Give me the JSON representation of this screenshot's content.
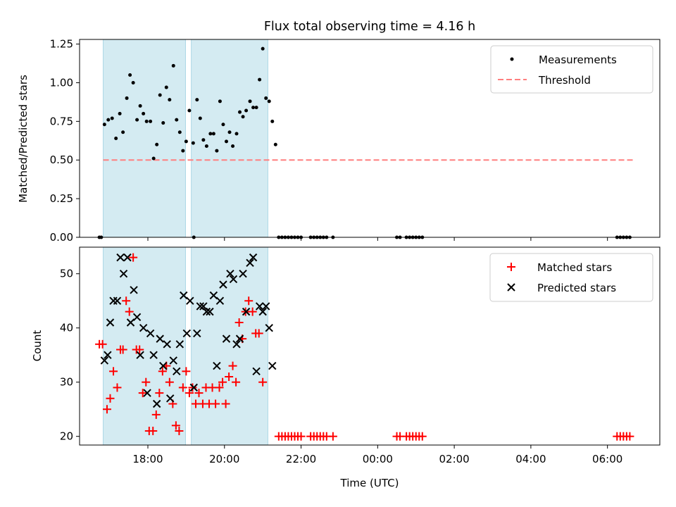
{
  "title": "Flux total observing time = 4.16 h",
  "xlabel": "Time (UTC)",
  "x_tick_labels": [
    "18:00",
    "20:00",
    "22:00",
    "00:00",
    "02:00",
    "04:00",
    "06:00"
  ],
  "colors": {
    "span": "#add8e6",
    "measurement": "#000000",
    "threshold": "#ff7f7f",
    "matched": "#ff0000",
    "predicted": "#000000"
  },
  "chart_data": [
    {
      "type": "scatter",
      "ylabel": "Matched/Predicted stars",
      "ylim": [
        0,
        1.28
      ],
      "yticks": [
        0.0,
        0.25,
        0.5,
        0.75,
        1.0,
        1.25
      ],
      "ytick_labels": [
        "0.00",
        "0.25",
        "0.50",
        "0.75",
        "1.00",
        "1.25"
      ],
      "xlim": [
        "16:13",
        "07:22"
      ],
      "legend_position": "top-right",
      "legend": [
        "Measurements",
        "Threshold"
      ],
      "shaded_spans": [
        [
          "16:50",
          "18:59"
        ],
        [
          "19:08",
          "21:08"
        ]
      ],
      "threshold": {
        "name": "Threshold",
        "y": 0.5,
        "x_range": [
          "16:50",
          "06:40"
        ]
      },
      "series": [
        {
          "name": "Measurements",
          "points": [
            [
              "16:44",
              0.0
            ],
            [
              "16:47",
              0.0
            ],
            [
              "16:52",
              0.73
            ],
            [
              "16:58",
              0.76
            ],
            [
              "17:04",
              0.77
            ],
            [
              "17:10",
              0.64
            ],
            [
              "17:16",
              0.8
            ],
            [
              "17:21",
              0.68
            ],
            [
              "17:27",
              0.9
            ],
            [
              "17:32",
              1.05
            ],
            [
              "17:37",
              1.0
            ],
            [
              "17:43",
              0.76
            ],
            [
              "17:48",
              0.85
            ],
            [
              "17:53",
              0.8
            ],
            [
              "17:58",
              0.75
            ],
            [
              "18:04",
              0.75
            ],
            [
              "18:09",
              0.51
            ],
            [
              "18:14",
              0.6
            ],
            [
              "18:19",
              0.92
            ],
            [
              "18:24",
              0.74
            ],
            [
              "18:29",
              0.97
            ],
            [
              "18:34",
              0.89
            ],
            [
              "18:40",
              1.11
            ],
            [
              "18:45",
              0.76
            ],
            [
              "18:50",
              0.68
            ],
            [
              "18:55",
              0.56
            ],
            [
              "19:00",
              0.62
            ],
            [
              "19:05",
              0.82
            ],
            [
              "19:11",
              0.61
            ],
            [
              "19:12",
              0.0
            ],
            [
              "19:17",
              0.89
            ],
            [
              "19:22",
              0.77
            ],
            [
              "19:27",
              0.63
            ],
            [
              "19:32",
              0.59
            ],
            [
              "19:38",
              0.67
            ],
            [
              "19:43",
              0.67
            ],
            [
              "19:48",
              0.56
            ],
            [
              "19:53",
              0.88
            ],
            [
              "19:58",
              0.73
            ],
            [
              "20:03",
              0.62
            ],
            [
              "20:08",
              0.68
            ],
            [
              "20:13",
              0.59
            ],
            [
              "20:19",
              0.67
            ],
            [
              "20:24",
              0.81
            ],
            [
              "20:29",
              0.78
            ],
            [
              "20:34",
              0.82
            ],
            [
              "20:40",
              0.88
            ],
            [
              "20:45",
              0.84
            ],
            [
              "20:50",
              0.84
            ],
            [
              "20:55",
              1.02
            ],
            [
              "21:00",
              1.22
            ],
            [
              "21:05",
              0.9
            ],
            [
              "21:10",
              0.88
            ],
            [
              "21:15",
              0.75
            ],
            [
              "21:20",
              0.6
            ],
            [
              "21:25",
              0.0
            ],
            [
              "21:30",
              0.0
            ],
            [
              "21:35",
              0.0
            ],
            [
              "21:40",
              0.0
            ],
            [
              "21:45",
              0.0
            ],
            [
              "21:50",
              0.0
            ],
            [
              "21:55",
              0.0
            ],
            [
              "22:00",
              0.0
            ],
            [
              "22:15",
              0.0
            ],
            [
              "22:20",
              0.0
            ],
            [
              "22:25",
              0.0
            ],
            [
              "22:30",
              0.0
            ],
            [
              "22:35",
              0.0
            ],
            [
              "22:40",
              0.0
            ],
            [
              "22:50",
              0.0
            ],
            [
              "00:30",
              0.0
            ],
            [
              "00:35",
              0.0
            ],
            [
              "00:45",
              0.0
            ],
            [
              "00:50",
              0.0
            ],
            [
              "00:55",
              0.0
            ],
            [
              "01:00",
              0.0
            ],
            [
              "01:05",
              0.0
            ],
            [
              "01:10",
              0.0
            ],
            [
              "06:15",
              0.0
            ],
            [
              "06:20",
              0.0
            ],
            [
              "06:25",
              0.0
            ],
            [
              "06:30",
              0.0
            ],
            [
              "06:35",
              0.0
            ]
          ]
        }
      ]
    },
    {
      "type": "scatter",
      "ylabel": "Count",
      "ylim": [
        18.4,
        54.9
      ],
      "yticks": [
        20,
        30,
        40,
        50
      ],
      "ytick_labels": [
        "20",
        "30",
        "40",
        "50"
      ],
      "xlim": [
        "16:13",
        "07:22"
      ],
      "legend_position": "top-right",
      "legend": [
        "Matched stars",
        "Predicted stars"
      ],
      "shaded_spans": [
        [
          "16:50",
          "18:59"
        ],
        [
          "19:08",
          "21:08"
        ]
      ],
      "series": [
        {
          "name": "Matched stars",
          "marker": "plus",
          "points": [
            [
              "16:44",
              37
            ],
            [
              "16:49",
              37
            ],
            [
              "16:56",
              25
            ],
            [
              "17:01",
              27
            ],
            [
              "17:06",
              32
            ],
            [
              "17:12",
              29
            ],
            [
              "17:17",
              36
            ],
            [
              "17:21",
              36
            ],
            [
              "17:26",
              45
            ],
            [
              "17:31",
              43
            ],
            [
              "17:37",
              53
            ],
            [
              "17:42",
              36
            ],
            [
              "17:47",
              36
            ],
            [
              "17:52",
              28
            ],
            [
              "17:57",
              30
            ],
            [
              "18:02",
              21
            ],
            [
              "18:08",
              21
            ],
            [
              "18:13",
              24
            ],
            [
              "18:18",
              28
            ],
            [
              "18:23",
              32
            ],
            [
              "18:29",
              33
            ],
            [
              "18:34",
              30
            ],
            [
              "18:39",
              26
            ],
            [
              "18:44",
              22
            ],
            [
              "18:49",
              21
            ],
            [
              "18:55",
              29
            ],
            [
              "19:00",
              32
            ],
            [
              "19:05",
              28
            ],
            [
              "19:10",
              29
            ],
            [
              "19:15",
              26
            ],
            [
              "19:20",
              28
            ],
            [
              "19:26",
              26
            ],
            [
              "19:31",
              29
            ],
            [
              "19:36",
              26
            ],
            [
              "19:41",
              29
            ],
            [
              "19:46",
              26
            ],
            [
              "19:52",
              29
            ],
            [
              "19:57",
              30
            ],
            [
              "20:02",
              26
            ],
            [
              "20:07",
              31
            ],
            [
              "20:13",
              33
            ],
            [
              "20:18",
              30
            ],
            [
              "20:23",
              41
            ],
            [
              "20:28",
              38
            ],
            [
              "20:33",
              43
            ],
            [
              "20:38",
              45
            ],
            [
              "20:44",
              43
            ],
            [
              "20:49",
              39
            ],
            [
              "20:54",
              39
            ],
            [
              "21:00",
              30
            ],
            [
              "21:25",
              20
            ],
            [
              "21:30",
              20
            ],
            [
              "21:35",
              20
            ],
            [
              "21:40",
              20
            ],
            [
              "21:45",
              20
            ],
            [
              "21:50",
              20
            ],
            [
              "21:55",
              20
            ],
            [
              "22:00",
              20
            ],
            [
              "22:15",
              20
            ],
            [
              "22:20",
              20
            ],
            [
              "22:25",
              20
            ],
            [
              "22:30",
              20
            ],
            [
              "22:35",
              20
            ],
            [
              "22:40",
              20
            ],
            [
              "22:50",
              20
            ],
            [
              "00:30",
              20
            ],
            [
              "00:35",
              20
            ],
            [
              "00:45",
              20
            ],
            [
              "00:50",
              20
            ],
            [
              "00:55",
              20
            ],
            [
              "01:00",
              20
            ],
            [
              "01:05",
              20
            ],
            [
              "01:10",
              20
            ],
            [
              "06:15",
              20
            ],
            [
              "06:20",
              20
            ],
            [
              "06:25",
              20
            ],
            [
              "06:30",
              20
            ],
            [
              "06:35",
              20
            ]
          ]
        },
        {
          "name": "Predicted stars",
          "marker": "x",
          "points": [
            [
              "16:52",
              34
            ],
            [
              "16:57",
              35
            ],
            [
              "17:01",
              41
            ],
            [
              "17:06",
              45
            ],
            [
              "17:12",
              45
            ],
            [
              "17:17",
              53
            ],
            [
              "17:22",
              50
            ],
            [
              "17:28",
              53
            ],
            [
              "17:33",
              41
            ],
            [
              "17:38",
              47
            ],
            [
              "17:43",
              42
            ],
            [
              "17:48",
              35
            ],
            [
              "17:53",
              40
            ],
            [
              "17:59",
              28
            ],
            [
              "18:04",
              39
            ],
            [
              "18:09",
              35
            ],
            [
              "18:14",
              26
            ],
            [
              "18:19",
              38
            ],
            [
              "18:24",
              33
            ],
            [
              "18:30",
              37
            ],
            [
              "18:35",
              27
            ],
            [
              "18:40",
              34
            ],
            [
              "18:45",
              32
            ],
            [
              "18:50",
              37
            ],
            [
              "18:56",
              46
            ],
            [
              "19:01",
              39
            ],
            [
              "19:06",
              45
            ],
            [
              "19:12",
              29
            ],
            [
              "19:17",
              39
            ],
            [
              "19:22",
              44
            ],
            [
              "19:27",
              44
            ],
            [
              "19:32",
              43
            ],
            [
              "19:37",
              43
            ],
            [
              "19:43",
              46
            ],
            [
              "19:48",
              33
            ],
            [
              "19:53",
              45
            ],
            [
              "19:58",
              48
            ],
            [
              "20:03",
              38
            ],
            [
              "20:09",
              50
            ],
            [
              "20:14",
              49
            ],
            [
              "20:19",
              37
            ],
            [
              "20:24",
              38
            ],
            [
              "20:29",
              50
            ],
            [
              "20:34",
              43
            ],
            [
              "20:40",
              52
            ],
            [
              "20:45",
              53
            ],
            [
              "20:50",
              32
            ],
            [
              "20:55",
              44
            ],
            [
              "21:00",
              43
            ],
            [
              "21:05",
              44
            ],
            [
              "21:10",
              40
            ],
            [
              "21:15",
              33
            ]
          ]
        }
      ]
    }
  ]
}
